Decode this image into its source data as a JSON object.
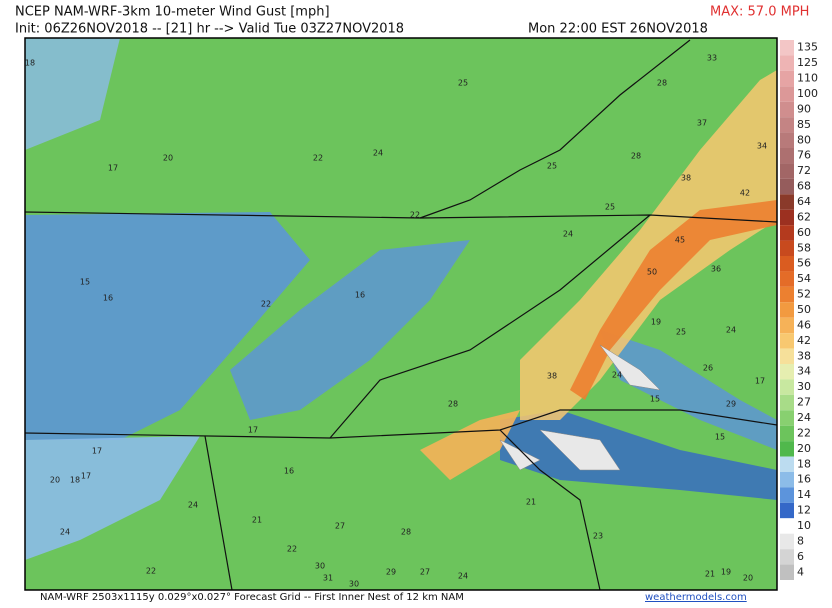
{
  "header": {
    "title": "NCEP NAM-WRF-3km 10-meter Wind Gust [mph]",
    "init": "Init: 06Z26NOV2018 -- [21] hr --> Valid Tue 03Z27NOV2018",
    "valid_time": "Mon 22:00 EST 26NOV2018",
    "max": "MAX: 57.0 MPH"
  },
  "colorbar": {
    "labels": [
      135,
      125,
      110,
      100,
      90,
      85,
      80,
      76,
      72,
      68,
      64,
      62,
      60,
      58,
      56,
      54,
      52,
      50,
      46,
      42,
      38,
      34,
      30,
      27,
      24,
      22,
      20,
      18,
      16,
      14,
      12,
      10,
      8,
      6,
      4
    ],
    "colors": [
      "#f3c6c6",
      "#eeb4b4",
      "#e6a4a4",
      "#dc9898",
      "#d08e8e",
      "#c48484",
      "#b87a7a",
      "#ad7070",
      "#a26666",
      "#955c5c",
      "#8a3a2a",
      "#9c3020",
      "#b43a1e",
      "#c84a1e",
      "#da5c20",
      "#e46c28",
      "#ec8030",
      "#f29a40",
      "#f6b258",
      "#f8c870",
      "#f6e09a",
      "#e6eeb0",
      "#c8e8a0",
      "#a8dc88",
      "#88d070",
      "#6cc45c",
      "#50b84c",
      "#bcdcf0",
      "#8cbce8",
      "#5c94dc",
      "#3468c8",
      "#ffffff",
      "#e8e8e8",
      "#d4d4d4",
      "#c0c0c0"
    ]
  },
  "map": {
    "labels": [
      "18",
      "17",
      "20",
      "22",
      "24",
      "25",
      "28",
      "33",
      "37",
      "34",
      "28",
      "25",
      "38",
      "42",
      "22",
      "25",
      "24",
      "45",
      "36",
      "15",
      "16",
      "22",
      "16",
      "50",
      "19",
      "25",
      "24",
      "26",
      "17",
      "38",
      "28",
      "24",
      "15",
      "29",
      "17",
      "15",
      "17",
      "16",
      "20",
      "18",
      "17",
      "24",
      "21",
      "21",
      "27",
      "28",
      "22",
      "23",
      "24",
      "30",
      "31",
      "30",
      "29",
      "27",
      "24",
      "22",
      "21",
      "19",
      "20"
    ]
  },
  "footer": {
    "left": "NAM-WRF 2503x1115y 0.029°x0.027° Forecast Grid -- First Inner Nest of 12 km NAM",
    "right": "weathermodels.com"
  }
}
